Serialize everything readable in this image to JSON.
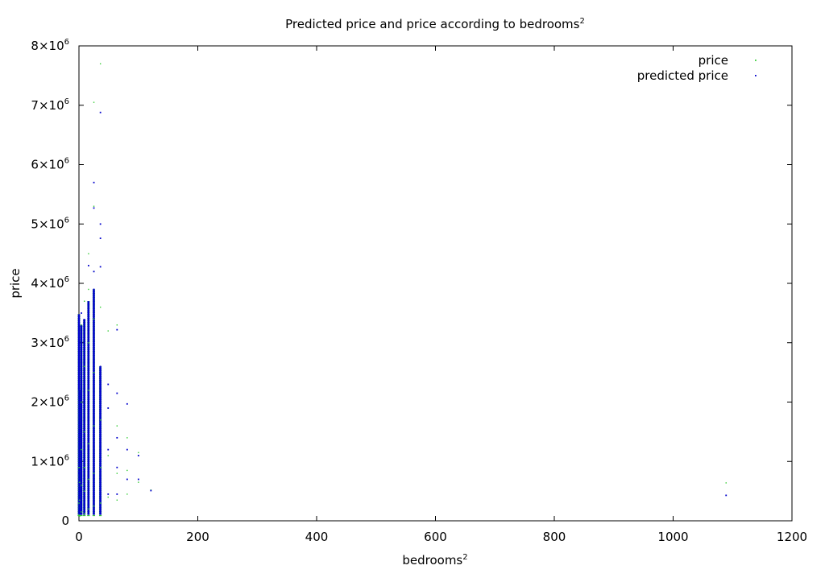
{
  "chart_data": {
    "type": "scatter",
    "title": "Predicted price and price according to bedrooms",
    "title_sup": "2",
    "xlabel": "bedrooms",
    "xlabel_sup": "2",
    "ylabel": "price",
    "xlim": [
      0,
      1200
    ],
    "ylim": [
      0,
      8000000
    ],
    "x_ticks": [
      {
        "value": 0,
        "label": "0"
      },
      {
        "value": 200,
        "label": "200"
      },
      {
        "value": 400,
        "label": "400"
      },
      {
        "value": 600,
        "label": "600"
      },
      {
        "value": 800,
        "label": "800"
      },
      {
        "value": 1000,
        "label": "1000"
      },
      {
        "value": 1200,
        "label": "1200"
      }
    ],
    "y_ticks": [
      {
        "value": 0,
        "base": "0",
        "exp": ""
      },
      {
        "value": 1000000,
        "base": "1×10",
        "exp": "6"
      },
      {
        "value": 2000000,
        "base": "2×10",
        "exp": "6"
      },
      {
        "value": 3000000,
        "base": "3×10",
        "exp": "6"
      },
      {
        "value": 4000000,
        "base": "4×10",
        "exp": "6"
      },
      {
        "value": 5000000,
        "base": "5×10",
        "exp": "6"
      },
      {
        "value": 6000000,
        "base": "6×10",
        "exp": "6"
      },
      {
        "value": 7000000,
        "base": "7×10",
        "exp": "6"
      },
      {
        "value": 8000000,
        "base": "8×10",
        "exp": "6"
      }
    ],
    "grid": false,
    "legend_position": "top-right",
    "series": [
      {
        "name": "price",
        "color": "#33cc33",
        "points": [
          [
            0,
            100000
          ],
          [
            0,
            300000
          ],
          [
            0,
            900000
          ],
          [
            1,
            80000
          ],
          [
            1,
            350000
          ],
          [
            1,
            650000
          ],
          [
            4,
            150000
          ],
          [
            4,
            600000
          ],
          [
            4,
            1200000
          ],
          [
            4,
            2000000
          ],
          [
            4,
            3300000
          ],
          [
            9,
            120000
          ],
          [
            9,
            500000
          ],
          [
            9,
            900000
          ],
          [
            9,
            1500000
          ],
          [
            9,
            2600000
          ],
          [
            9,
            3700000
          ],
          [
            16,
            200000
          ],
          [
            16,
            700000
          ],
          [
            16,
            1300000
          ],
          [
            16,
            2200000
          ],
          [
            16,
            3000000
          ],
          [
            16,
            3900000
          ],
          [
            16,
            4500000
          ],
          [
            25,
            250000
          ],
          [
            25,
            800000
          ],
          [
            25,
            1600000
          ],
          [
            25,
            2500000
          ],
          [
            25,
            3400000
          ],
          [
            25,
            4200000
          ],
          [
            25,
            5300000
          ],
          [
            25,
            7050000
          ],
          [
            36,
            300000
          ],
          [
            36,
            900000
          ],
          [
            36,
            1700000
          ],
          [
            36,
            2600000
          ],
          [
            36,
            3600000
          ],
          [
            36,
            7700000
          ],
          [
            49,
            400000
          ],
          [
            49,
            1100000
          ],
          [
            49,
            1900000
          ],
          [
            49,
            3200000
          ],
          [
            64,
            350000
          ],
          [
            64,
            800000
          ],
          [
            64,
            1600000
          ],
          [
            64,
            3300000
          ],
          [
            81,
            450000
          ],
          [
            81,
            850000
          ],
          [
            81,
            1400000
          ],
          [
            100,
            650000
          ],
          [
            100,
            1150000
          ],
          [
            121,
            520000
          ],
          [
            1089,
            640000
          ]
        ]
      },
      {
        "name": "predicted price",
        "color": "#0000cc",
        "points": [
          [
            0,
            150000
          ],
          [
            0,
            400000
          ],
          [
            0,
            800000
          ],
          [
            1,
            120000
          ],
          [
            1,
            500000
          ],
          [
            1,
            1000000
          ],
          [
            4,
            200000
          ],
          [
            4,
            700000
          ],
          [
            4,
            1400000
          ],
          [
            4,
            2100000
          ],
          [
            4,
            3000000
          ],
          [
            4,
            3500000
          ],
          [
            9,
            180000
          ],
          [
            9,
            600000
          ],
          [
            9,
            1100000
          ],
          [
            9,
            1700000
          ],
          [
            9,
            2300000
          ],
          [
            9,
            3000000
          ],
          [
            16,
            250000
          ],
          [
            16,
            900000
          ],
          [
            16,
            1600000
          ],
          [
            16,
            2400000
          ],
          [
            16,
            3200000
          ],
          [
            16,
            3600000
          ],
          [
            16,
            4300000
          ],
          [
            25,
            300000
          ],
          [
            25,
            1000000
          ],
          [
            25,
            1900000
          ],
          [
            25,
            2800000
          ],
          [
            25,
            3500000
          ],
          [
            25,
            3900000
          ],
          [
            25,
            4200000
          ],
          [
            25,
            5270000
          ],
          [
            25,
            5700000
          ],
          [
            36,
            350000
          ],
          [
            36,
            1000000
          ],
          [
            36,
            1800000
          ],
          [
            36,
            2600000
          ],
          [
            36,
            4280000
          ],
          [
            36,
            4760000
          ],
          [
            36,
            5000000
          ],
          [
            36,
            6880000
          ],
          [
            49,
            450000
          ],
          [
            49,
            1200000
          ],
          [
            49,
            1900000
          ],
          [
            49,
            2300000
          ],
          [
            64,
            450000
          ],
          [
            64,
            900000
          ],
          [
            64,
            1400000
          ],
          [
            64,
            2150000
          ],
          [
            64,
            3220000
          ],
          [
            81,
            700000
          ],
          [
            81,
            1200000
          ],
          [
            81,
            1970000
          ],
          [
            100,
            700000
          ],
          [
            100,
            1100000
          ],
          [
            121,
            510000
          ],
          [
            1089,
            430000
          ]
        ],
        "dense_columns": [
          {
            "x": 0,
            "max": 3480000
          },
          {
            "x": 1,
            "max": 2200000
          },
          {
            "x": 4,
            "max": 3300000
          },
          {
            "x": 9,
            "max": 3400000
          },
          {
            "x": 16,
            "max": 3700000
          },
          {
            "x": 25,
            "max": 3900000
          },
          {
            "x": 36,
            "max": 2600000
          }
        ]
      }
    ]
  }
}
